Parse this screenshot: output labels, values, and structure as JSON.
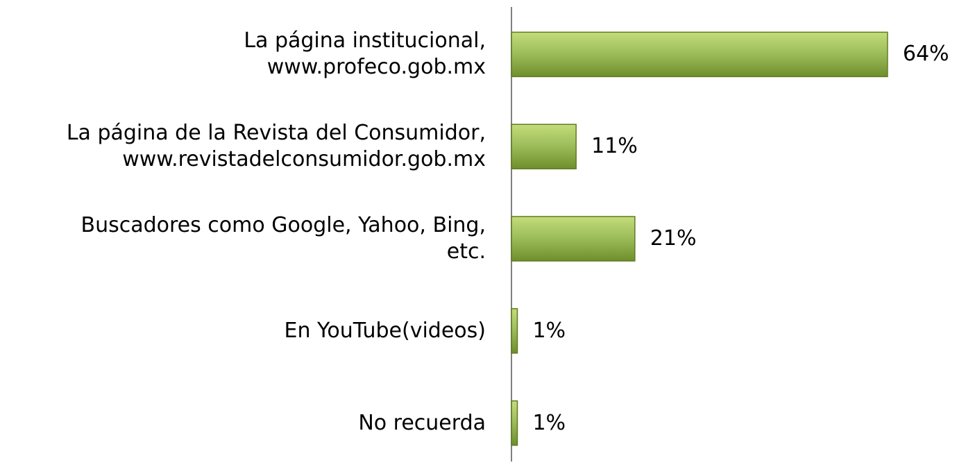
{
  "chart_data": {
    "type": "bar",
    "orientation": "horizontal",
    "categories": [
      "La página institucional,\nwww.profeco.gob.mx",
      "La página de la Revista del Consumidor,\nwww.revistadelconsumidor.gob.mx",
      "Buscadores como Google, Yahoo, Bing,\netc.",
      "En YouTube(videos)",
      "No recuerda"
    ],
    "values": [
      64,
      11,
      21,
      1,
      1
    ],
    "value_labels": [
      "64%",
      "11%",
      "21%",
      "1%",
      "1%"
    ],
    "color": "#9bbb59",
    "xlim": [
      0,
      75
    ]
  }
}
